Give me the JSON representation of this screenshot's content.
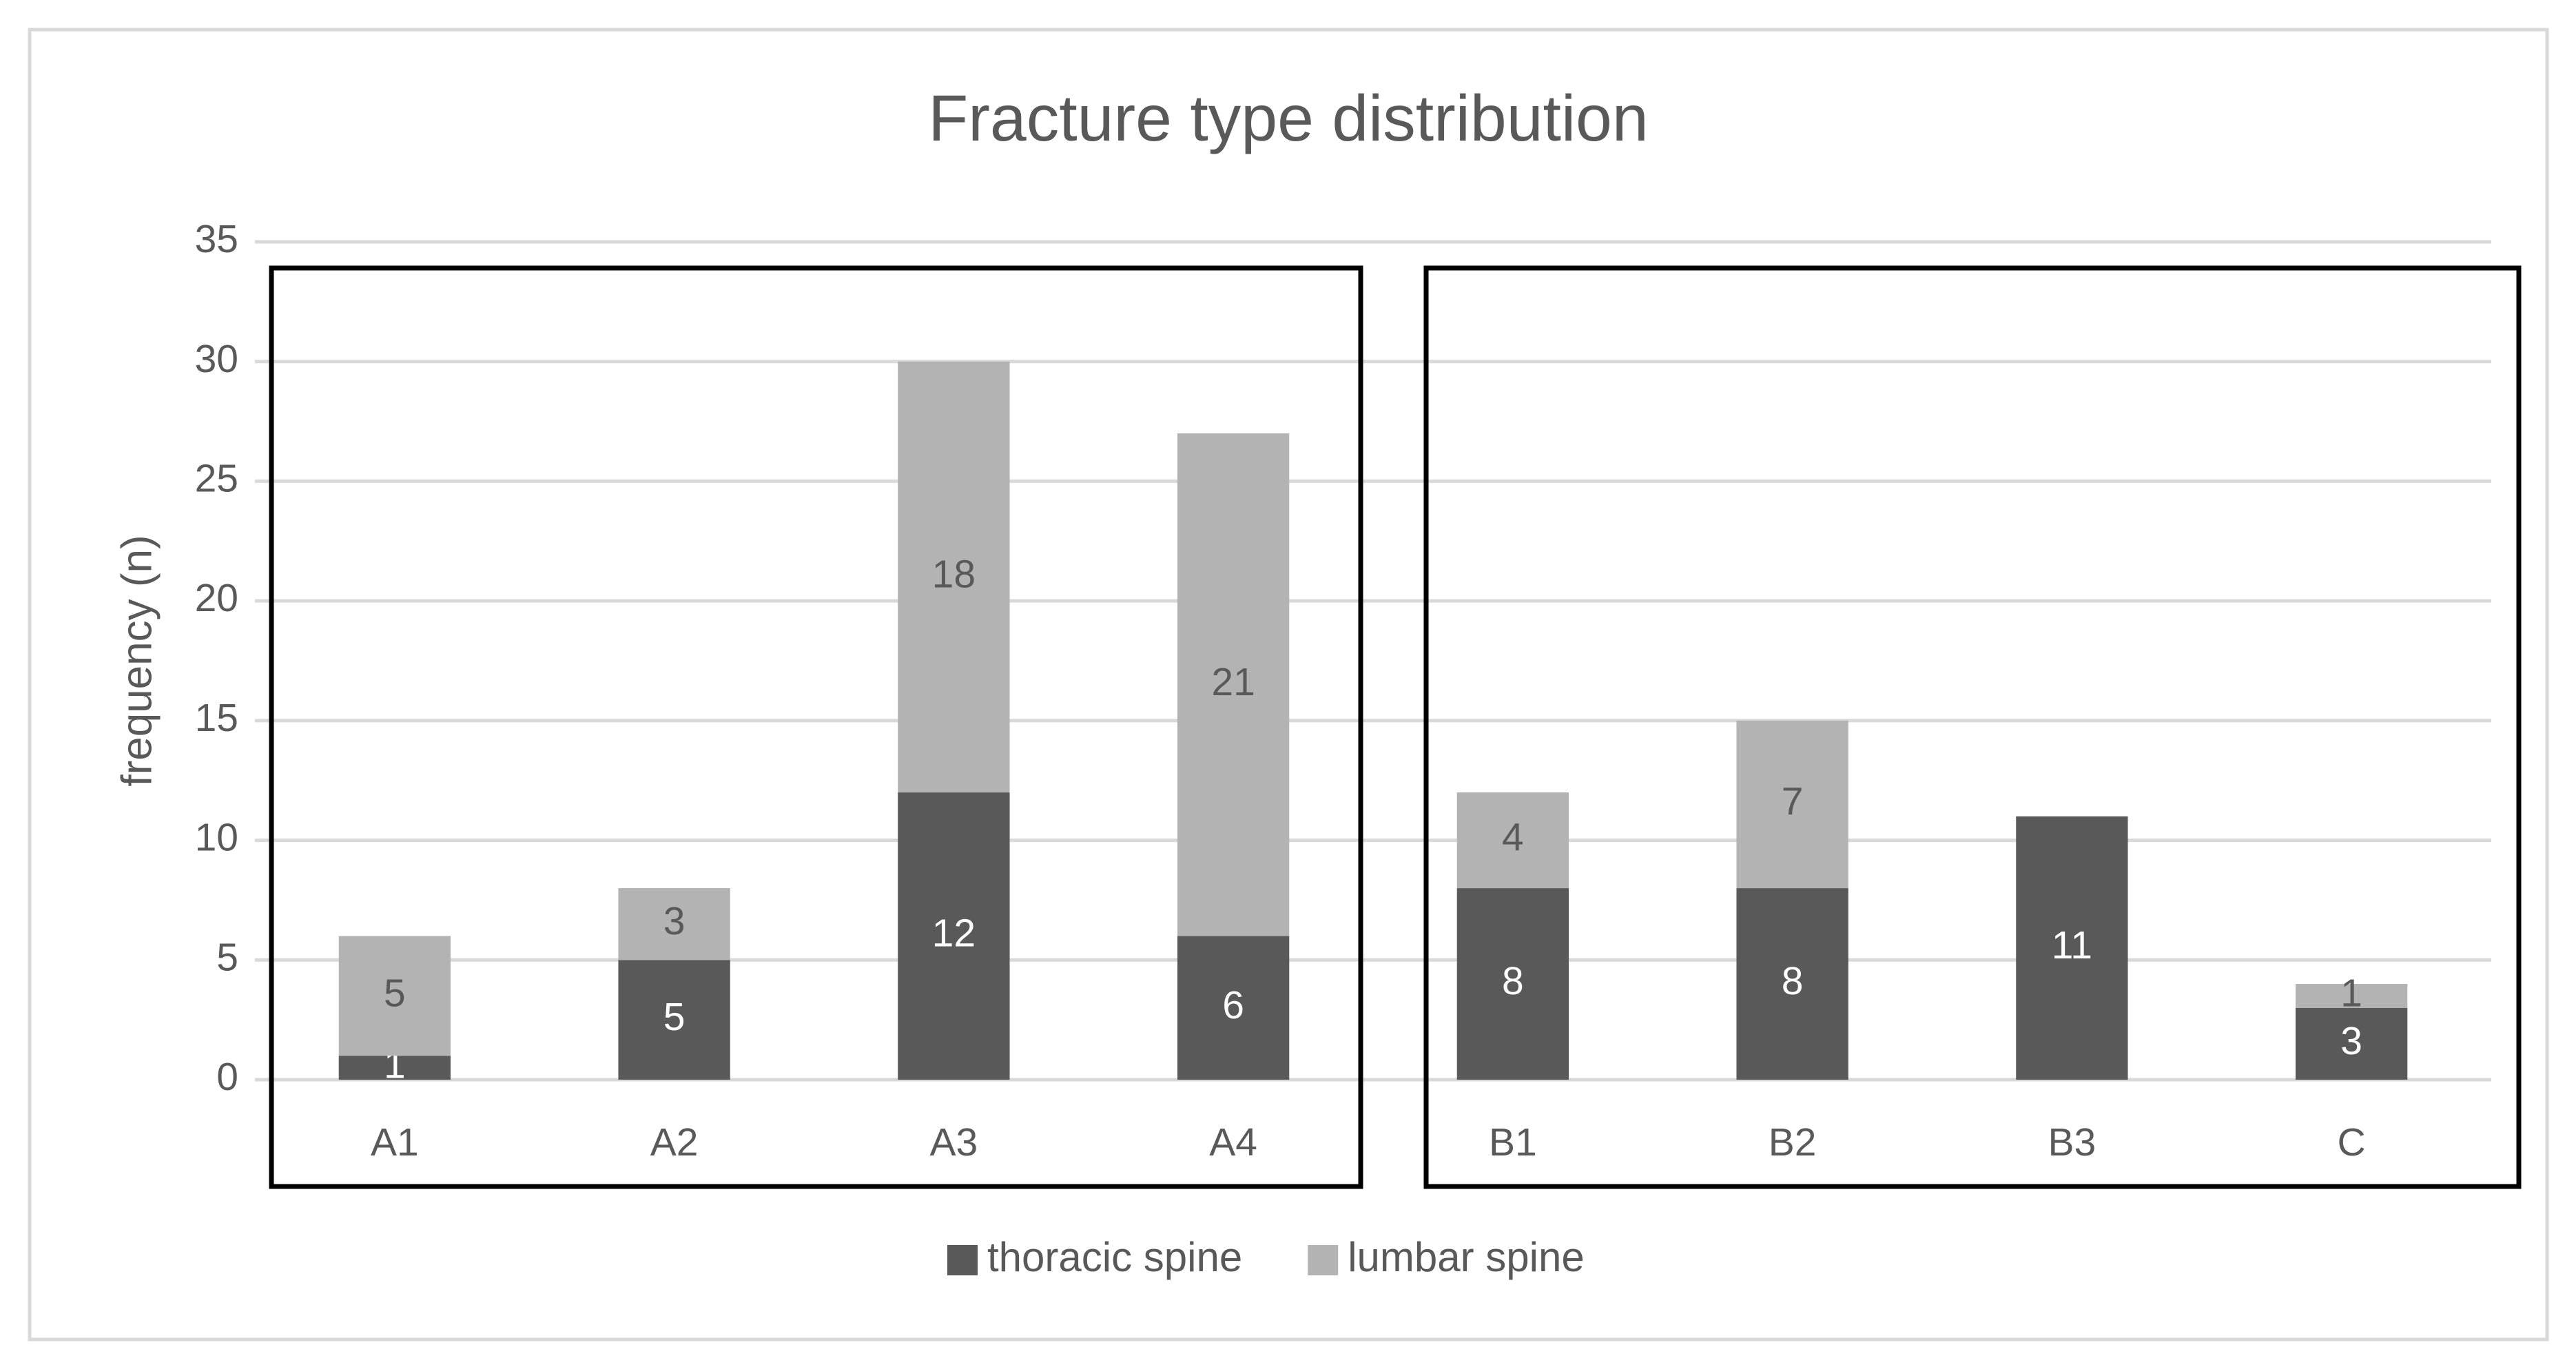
{
  "chart_data": {
    "type": "stacked_bar",
    "title": "Fracture type distribution",
    "y_label": "frequency (n)",
    "categories": [
      "A1",
      "A2",
      "A3",
      "A4",
      "B1",
      "B2",
      "B3",
      "C"
    ],
    "series": [
      {
        "name": "thoracic spine",
        "color": "#595959",
        "label_color": "#ffffff",
        "values": [
          1,
          5,
          12,
          6,
          8,
          8,
          11,
          3
        ]
      },
      {
        "name": "lumbar spine",
        "color": "#b3b3b3",
        "label_color": "#595959",
        "values": [
          5,
          3,
          18,
          21,
          4,
          7,
          null,
          1
        ]
      }
    ],
    "ylim": [
      0,
      35
    ],
    "yticks": [
      0,
      5,
      10,
      15,
      20,
      25,
      30,
      35
    ],
    "grid": true,
    "legend": "bottom"
  }
}
